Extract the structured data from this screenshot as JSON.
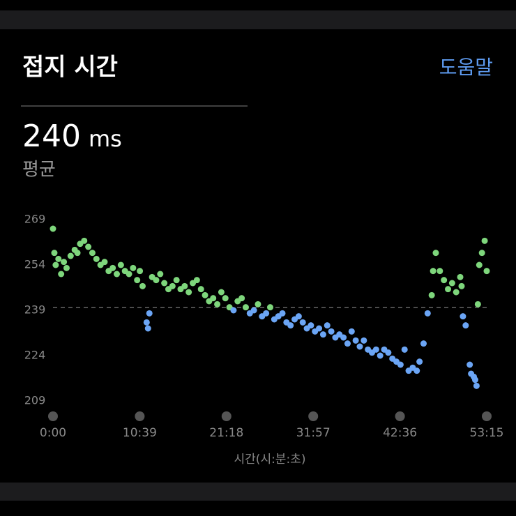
{
  "header": {
    "title": "접지 시간",
    "help": "도움말"
  },
  "summary": {
    "value": 240,
    "unit": "ms",
    "label": "평균"
  },
  "chart_data": {
    "type": "scatter",
    "x_label": "시간(시:분:초)",
    "x": [
      0,
      10,
      20,
      40,
      60,
      80,
      100,
      130,
      160,
      180,
      200,
      230,
      260,
      290,
      320,
      350,
      380,
      410,
      440,
      470,
      500,
      530,
      560,
      590,
      620,
      640,
      660,
      690,
      700,
      710,
      730,
      760,
      790,
      820,
      850,
      880,
      910,
      940,
      970,
      1000,
      1030,
      1060,
      1090,
      1120,
      1150,
      1180,
      1210,
      1240,
      1270,
      1300,
      1330,
      1360,
      1390,
      1420,
      1450,
      1480,
      1510,
      1540,
      1570,
      1600,
      1630,
      1660,
      1690,
      1720,
      1750,
      1780,
      1810,
      1840,
      1870,
      1900,
      1930,
      1960,
      1990,
      2020,
      2050,
      2080,
      2110,
      2140,
      2170,
      2200,
      2230,
      2260,
      2290,
      2320,
      2350,
      2380,
      2410,
      2440,
      2470,
      2500,
      2530,
      2560,
      2590,
      2620,
      2650,
      2680,
      2700,
      2730,
      2760,
      2790,
      2800,
      2820,
      2850,
      2880,
      2910,
      2940,
      2970,
      3000,
      3010,
      3020,
      3040,
      3070,
      3080,
      3100,
      3110,
      3120,
      3130,
      3140,
      3160,
      3180,
      3195
    ],
    "values": [
      266,
      258,
      254,
      256,
      251,
      255,
      253,
      257,
      259,
      258,
      261,
      262,
      260,
      258,
      256,
      254,
      255,
      252,
      253,
      251,
      254,
      252,
      251,
      253,
      249,
      252,
      247,
      235,
      233,
      238,
      250,
      249,
      251,
      248,
      246,
      247,
      249,
      246,
      247,
      245,
      248,
      249,
      246,
      244,
      242,
      243,
      241,
      245,
      243,
      240,
      239,
      242,
      243,
      240,
      238,
      239,
      241,
      237,
      238,
      240,
      236,
      237,
      238,
      235,
      234,
      236,
      237,
      235,
      233,
      234,
      232,
      233,
      231,
      234,
      232,
      230,
      231,
      230,
      228,
      232,
      229,
      227,
      229,
      226,
      225,
      226,
      224,
      226,
      225,
      223,
      222,
      221,
      226,
      219,
      220,
      219,
      222,
      228,
      238,
      244,
      252,
      258,
      252,
      249,
      246,
      248,
      245,
      250,
      247,
      237,
      234,
      221,
      218,
      217,
      216,
      214,
      241,
      254,
      258,
      262,
      252
    ],
    "colors": {
      "above": "#7ed67c",
      "below": "#6ba5f5"
    },
    "xlim": [
      0,
      3195
    ],
    "xticks": [
      {
        "value": 0,
        "label": "0:00"
      },
      {
        "value": 639,
        "label": "10:39"
      },
      {
        "value": 1278,
        "label": "21:18"
      },
      {
        "value": 1917,
        "label": "31:57"
      },
      {
        "value": 2556,
        "label": "42:36"
      },
      {
        "value": 3195,
        "label": "53:15"
      }
    ],
    "ylim": [
      209,
      269
    ],
    "yticks": [
      209,
      224,
      239,
      254,
      269
    ]
  }
}
